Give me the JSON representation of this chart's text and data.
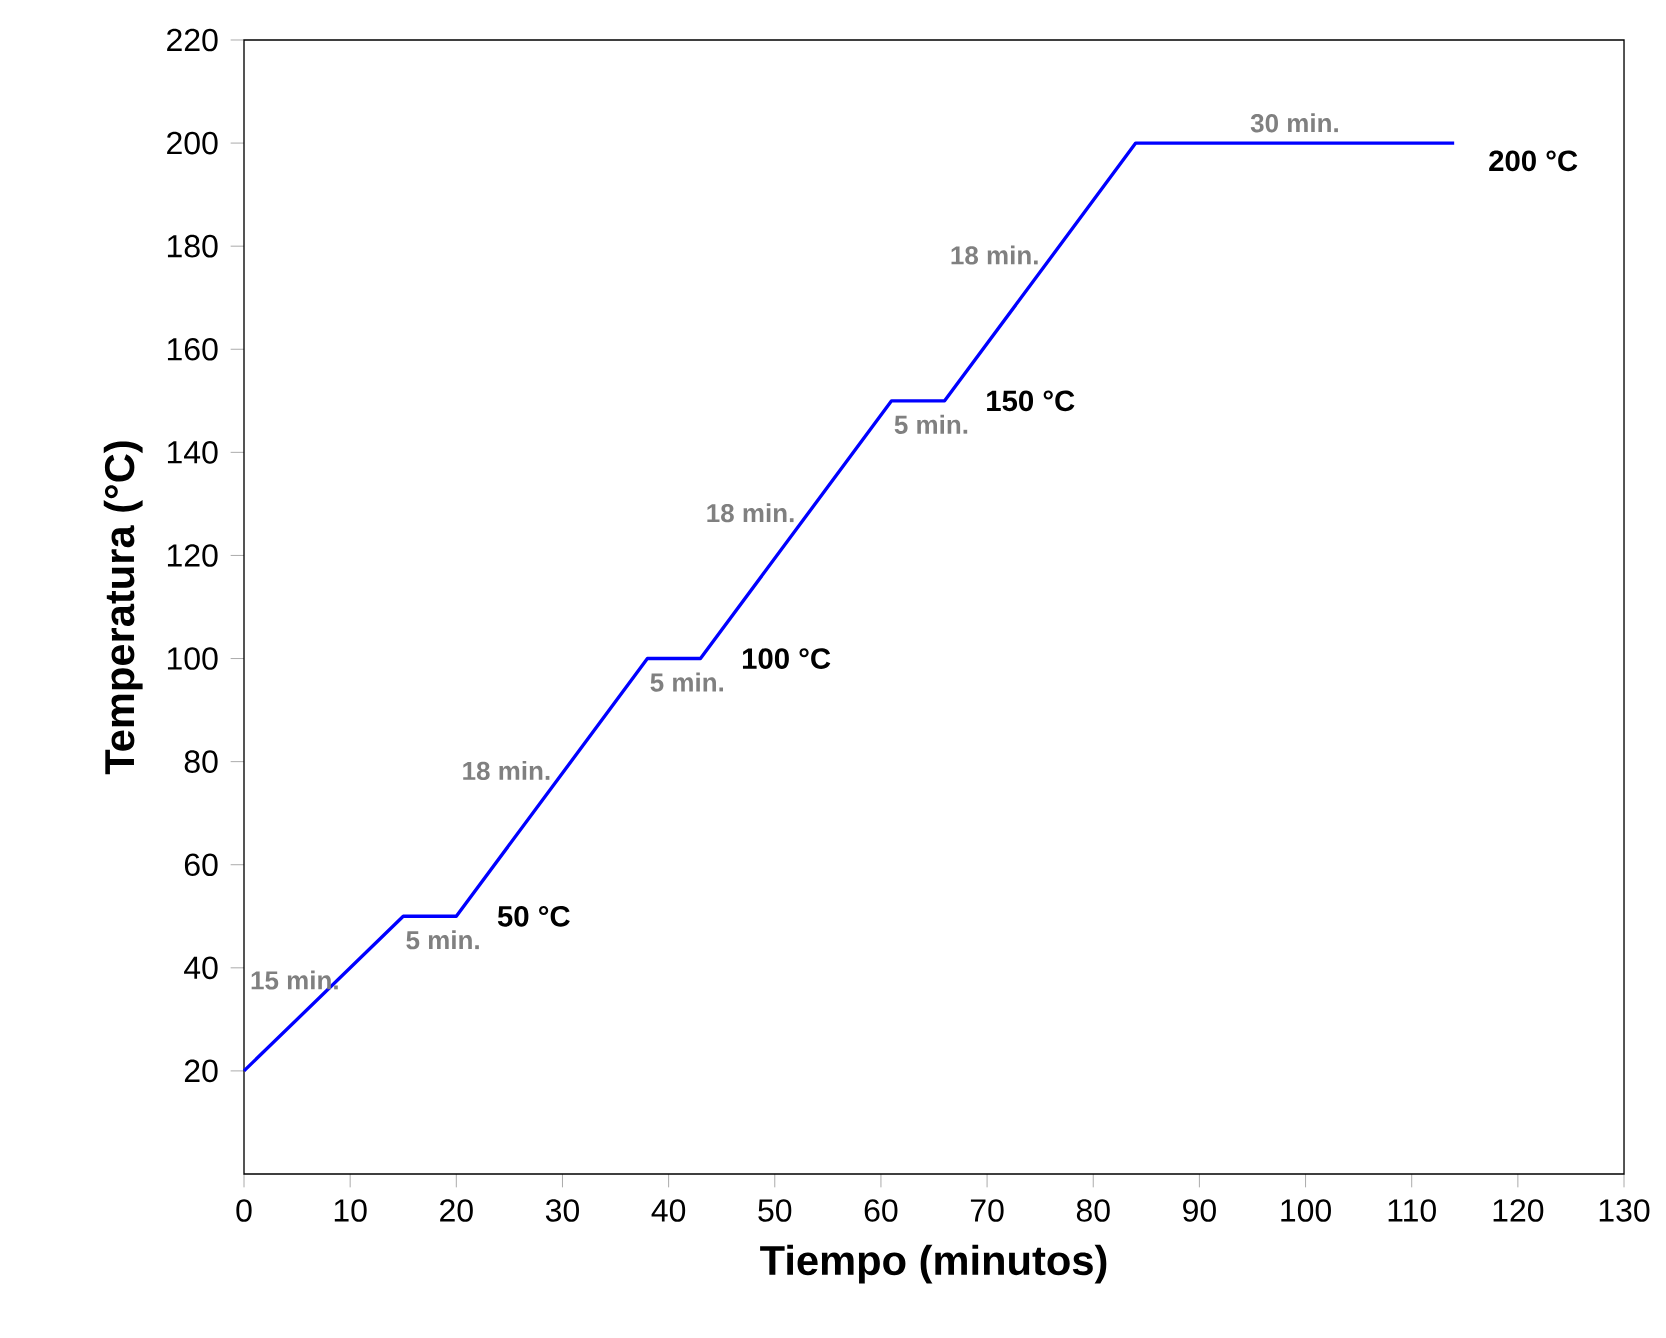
{
  "chart_data": {
    "type": "line",
    "xlabel": "Tiempo (minutos)",
    "ylabel": "Temperatura (°C)",
    "x": [
      0,
      15,
      20,
      38,
      43,
      61,
      66,
      84,
      114
    ],
    "values": [
      20,
      50,
      50,
      100,
      100,
      150,
      150,
      200,
      200
    ],
    "color": "#0000ff",
    "xlim": [
      0,
      130
    ],
    "xticks": [
      0,
      10,
      20,
      30,
      40,
      50,
      60,
      70,
      80,
      90,
      100,
      110,
      120,
      130
    ],
    "ylim": [
      0,
      220
    ],
    "yticks": [
      20,
      40,
      60,
      80,
      100,
      120,
      140,
      160,
      180,
      200,
      220
    ],
    "grid": false,
    "marker": "none",
    "line_style": "solid",
    "annotations": [
      "15 min.",
      "5 min.",
      "18 min.",
      "5 min.",
      "18 min.",
      "5 min.",
      "18 min.",
      "30 min.",
      "50 °C",
      "100 °C",
      "150 °C",
      "200 °C"
    ]
  }
}
